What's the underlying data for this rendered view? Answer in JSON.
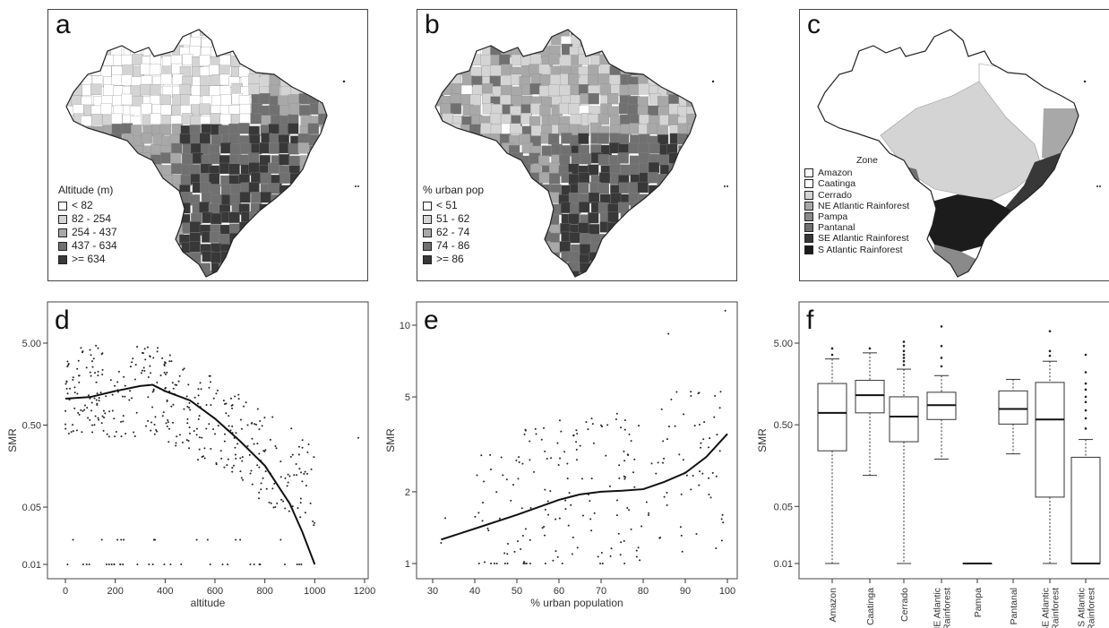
{
  "colors": {
    "c1": "#ffffff",
    "c2": "#d4d4d4",
    "c3": "#a8a8a8",
    "c4": "#707070",
    "c5": "#383838",
    "c6": "#1c1c1c",
    "stroke": "#222222"
  },
  "maps": [
    {
      "letter": "a",
      "legend_title": "Altitude (m)",
      "legend": [
        {
          "label": "< 82",
          "color": "#ffffff"
        },
        {
          "label": "82 - 254",
          "color": "#d4d4d4"
        },
        {
          "label": "254 - 437",
          "color": "#a8a8a8"
        },
        {
          "label": "437 - 634",
          "color": "#707070"
        },
        {
          "label": ">= 634",
          "color": "#383838"
        }
      ]
    },
    {
      "letter": "b",
      "legend_title": "% urban pop",
      "legend": [
        {
          "label": "< 51",
          "color": "#ffffff"
        },
        {
          "label": "51 - 62",
          "color": "#d4d4d4"
        },
        {
          "label": "62 - 74",
          "color": "#a8a8a8"
        },
        {
          "label": "74 - 86",
          "color": "#707070"
        },
        {
          "label": ">= 86",
          "color": "#383838"
        }
      ]
    },
    {
      "letter": "c",
      "legend_title": "Zone",
      "legend": [
        {
          "label": "Amazon",
          "color": "#ffffff"
        },
        {
          "label": "Caatinga",
          "color": "#ffffff"
        },
        {
          "label": "Cerrado",
          "color": "#d4d4d4"
        },
        {
          "label": "NE Atlantic Rainforest",
          "color": "#a8a8a8"
        },
        {
          "label": "Pampa",
          "color": "#8a8a8a"
        },
        {
          "label": "Pantanal",
          "color": "#707070"
        },
        {
          "label": "SE Atlantic Rainforest",
          "color": "#383838"
        },
        {
          "label": "S Atlantic Rainforest",
          "color": "#1c1c1c"
        }
      ]
    }
  ],
  "chart_data": [
    {
      "panel": "d",
      "type": "scatter",
      "xlabel": "altitude",
      "ylabel": "SMR",
      "y_scale": "log",
      "xlim": [
        0,
        1200
      ],
      "ylim": [
        0.01,
        5
      ],
      "x_ticks": [
        "0",
        "200",
        "400",
        "600",
        "800",
        "1000",
        "1200"
      ],
      "y_ticks": [
        "0.01",
        "0.05",
        "0.50",
        "5.00"
      ],
      "smooth_line": {
        "x": [
          0,
          100,
          200,
          300,
          350,
          400,
          500,
          600,
          700,
          800,
          900,
          950,
          1000
        ],
        "y": [
          1.05,
          1.1,
          1.3,
          1.5,
          1.55,
          1.3,
          1.0,
          0.6,
          0.32,
          0.16,
          0.055,
          0.025,
          0.01
        ]
      },
      "points_note": "scatter of ~400 districts"
    },
    {
      "panel": "e",
      "type": "scatter",
      "xlabel": "% urban population",
      "ylabel": "SMR",
      "y_scale": "log",
      "xlim": [
        30,
        100
      ],
      "ylim": [
        1,
        10
      ],
      "x_ticks": [
        "30",
        "40",
        "50",
        "60",
        "70",
        "80",
        "90",
        "100"
      ],
      "y_ticks": [
        "1",
        "2",
        "5",
        "10"
      ],
      "smooth_line": {
        "x": [
          32,
          40,
          50,
          60,
          65,
          70,
          75,
          80,
          85,
          90,
          95,
          100
        ],
        "y": [
          1.26,
          1.4,
          1.6,
          1.85,
          1.95,
          2.0,
          2.02,
          2.05,
          2.2,
          2.4,
          2.8,
          3.5
        ]
      },
      "points_note": "scatter of ~220 districts"
    },
    {
      "panel": "f",
      "type": "box",
      "ylabel": "SMR",
      "y_scale": "log",
      "ylim": [
        0.01,
        5
      ],
      "y_ticks": [
        "0.01",
        "0.05",
        "0.50",
        "5.00"
      ],
      "categories": [
        "Amazon",
        "Caatinga",
        "Cerrado",
        "NE Atlantic Rainforest",
        "Pampa",
        "Pantanal",
        "SE Atlantic Rainforest",
        "S Atlantic Rainforest"
      ],
      "category_labels": [
        [
          "Amazon"
        ],
        [
          "Caatinga"
        ],
        [
          "Cerrado"
        ],
        [
          "NE Atlantic",
          "Rainforest"
        ],
        [
          "Pampa"
        ],
        [
          "Pantanal"
        ],
        [
          "SE Atlantic",
          "Rainforest"
        ],
        [
          "S Atlantic",
          "Rainforest"
        ]
      ],
      "boxes": [
        {
          "lo": 0.01,
          "q1": 0.24,
          "med": 0.7,
          "q3": 1.6,
          "hi": 3.2,
          "out": [
            3.6,
            4.3
          ]
        },
        {
          "lo": 0.12,
          "q1": 0.7,
          "med": 1.15,
          "q3": 1.75,
          "hi": 3.8,
          "out": [
            4.3
          ]
        },
        {
          "lo": 0.01,
          "q1": 0.31,
          "med": 0.63,
          "q3": 1.1,
          "hi": 2.4,
          "out": [
            2.7,
            3.0,
            3.3,
            3.6,
            4.0,
            4.6,
            5.2
          ]
        },
        {
          "lo": 0.19,
          "q1": 0.58,
          "med": 0.87,
          "q3": 1.25,
          "hi": 2.0,
          "out": [
            2.6,
            3.3,
            4.6,
            8.0
          ]
        },
        {
          "lo": 0.01,
          "q1": 0.01,
          "med": 0.01,
          "q3": 0.01,
          "hi": 0.01,
          "out": []
        },
        {
          "lo": 0.22,
          "q1": 0.51,
          "med": 0.78,
          "q3": 1.3,
          "hi": 1.8,
          "out": []
        },
        {
          "lo": 0.01,
          "q1": 0.065,
          "med": 0.58,
          "q3": 1.65,
          "hi": 3.0,
          "out": [
            3.5,
            4.0,
            7.0
          ]
        },
        {
          "lo": 0.01,
          "q1": 0.01,
          "med": 0.01,
          "q3": 0.2,
          "hi": 0.33,
          "out": [
            0.45,
            0.6,
            0.75,
            0.95,
            1.1,
            1.35,
            1.6,
            2.2,
            3.6
          ]
        }
      ]
    }
  ]
}
